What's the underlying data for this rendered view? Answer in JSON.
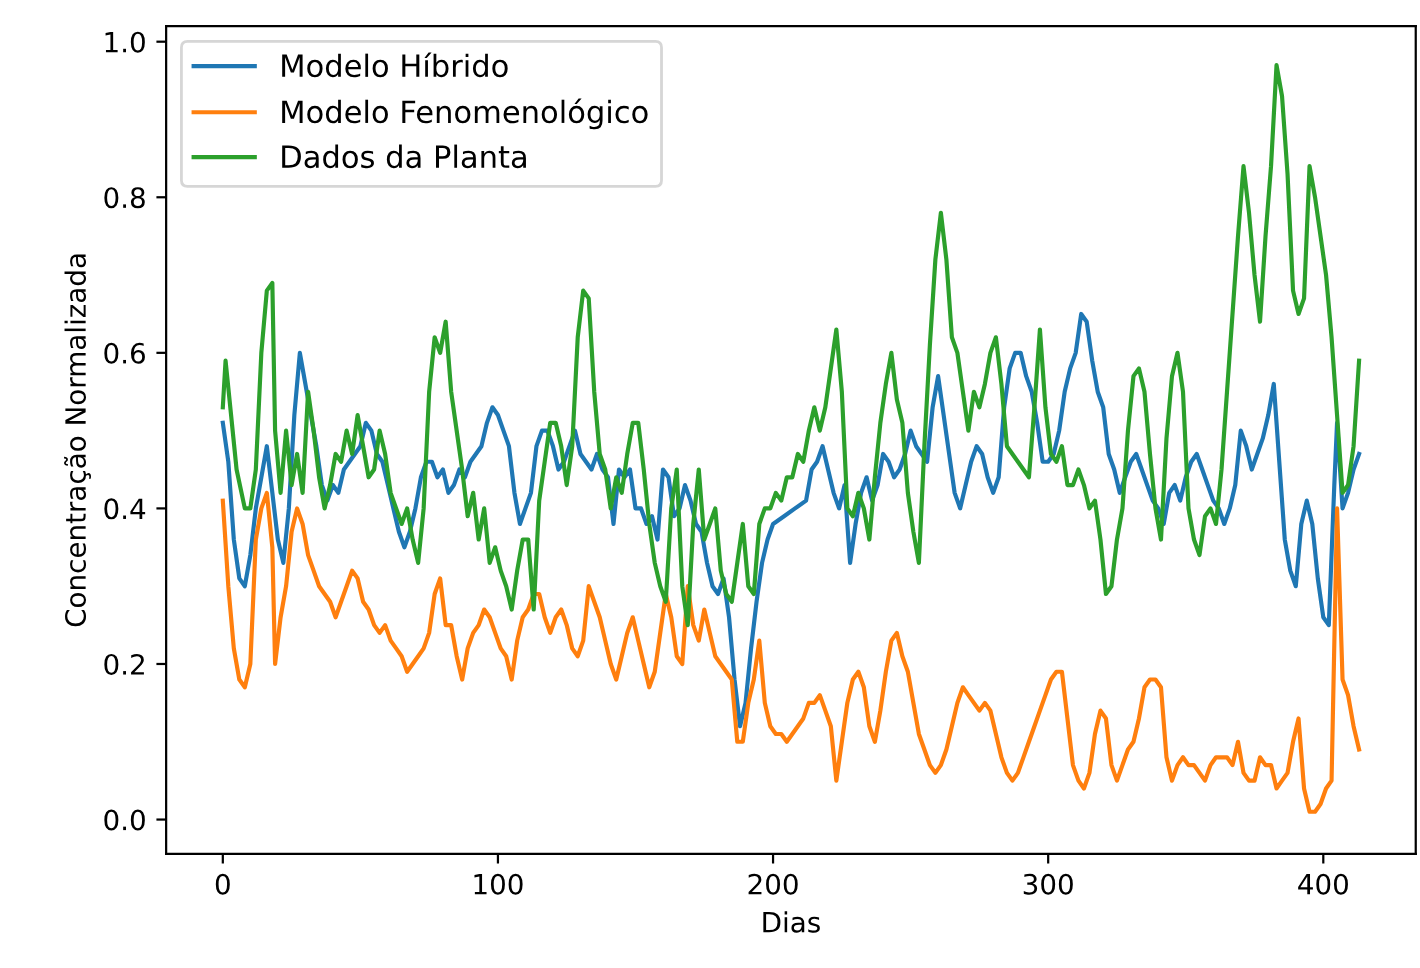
{
  "chart_data": {
    "type": "line",
    "xlabel": "Dias",
    "ylabel": "Concentração Normalizada",
    "xlim": [
      -20.6,
      433.6
    ],
    "ylim": [
      -0.044,
      1.02
    ],
    "xticks": [
      0,
      100,
      200,
      300,
      400
    ],
    "yticks": [
      {
        "value": 0,
        "label": "0.0"
      },
      {
        "value": 0.2,
        "label": "0.2"
      },
      {
        "value": 0.4,
        "label": "0.4"
      },
      {
        "value": 0.6,
        "label": "0.6"
      },
      {
        "value": 0.8,
        "label": "0.8"
      },
      {
        "value": 1,
        "label": "1.0"
      }
    ],
    "legend": "top left",
    "grid": false,
    "line_style": "solid",
    "marker": "none",
    "series": [
      {
        "name": "Modelo Híbrido",
        "color": "#1f77b4",
        "x": [
          0,
          2,
          4,
          6,
          8,
          10,
          12,
          14,
          16,
          18,
          20,
          22,
          24,
          26,
          28,
          30,
          32,
          34,
          36,
          38,
          40,
          42,
          44,
          46,
          48,
          50,
          52,
          54,
          56,
          58,
          60,
          62,
          64,
          66,
          68,
          70,
          72,
          74,
          76,
          78,
          80,
          82,
          84,
          86,
          88,
          90,
          92,
          94,
          96,
          98,
          100,
          102,
          104,
          106,
          108,
          110,
          112,
          114,
          116,
          118,
          120,
          122,
          124,
          126,
          128,
          130,
          132,
          134,
          136,
          138,
          140,
          142,
          144,
          146,
          148,
          150,
          152,
          154,
          156,
          158,
          160,
          162,
          164,
          166,
          168,
          170,
          172,
          174,
          176,
          178,
          180,
          182,
          184,
          186,
          188,
          190,
          192,
          194,
          196,
          198,
          200,
          204,
          208,
          212,
          214,
          216,
          218,
          220,
          222,
          224,
          226,
          228,
          230,
          232,
          234,
          236,
          238,
          240,
          242,
          244,
          246,
          248,
          250,
          252,
          254,
          256,
          258,
          260,
          262,
          264,
          266,
          268,
          270,
          272,
          274,
          276,
          278,
          280,
          282,
          284,
          286,
          288,
          290,
          292,
          294,
          296,
          298,
          300,
          302,
          304,
          306,
          308,
          310,
          312,
          314,
          316,
          318,
          320,
          322,
          324,
          326,
          328,
          330,
          332,
          334,
          336,
          338,
          340,
          342,
          344,
          346,
          348,
          350,
          352,
          354,
          356,
          358,
          360,
          362,
          364,
          366,
          368,
          370,
          372,
          374,
          376,
          378,
          380,
          382,
          384,
          386,
          388,
          390,
          392,
          394,
          396,
          398,
          400,
          402,
          404,
          405,
          407,
          409,
          411,
          413
        ],
        "values": [
          0.51,
          0.46,
          0.36,
          0.31,
          0.3,
          0.34,
          0.4,
          0.44,
          0.48,
          0.42,
          0.36,
          0.33,
          0.4,
          0.52,
          0.6,
          0.56,
          0.52,
          0.48,
          0.43,
          0.41,
          0.43,
          0.42,
          0.45,
          0.46,
          0.47,
          0.48,
          0.51,
          0.5,
          0.47,
          0.46,
          0.43,
          0.4,
          0.37,
          0.35,
          0.37,
          0.4,
          0.44,
          0.46,
          0.46,
          0.44,
          0.45,
          0.42,
          0.43,
          0.45,
          0.44,
          0.46,
          0.47,
          0.48,
          0.51,
          0.53,
          0.52,
          0.5,
          0.48,
          0.42,
          0.38,
          0.4,
          0.42,
          0.48,
          0.5,
          0.5,
          0.48,
          0.45,
          0.46,
          0.48,
          0.5,
          0.47,
          0.46,
          0.45,
          0.47,
          0.45,
          0.44,
          0.38,
          0.45,
          0.44,
          0.45,
          0.4,
          0.4,
          0.38,
          0.39,
          0.36,
          0.45,
          0.44,
          0.39,
          0.4,
          0.43,
          0.41,
          0.38,
          0.37,
          0.33,
          0.3,
          0.29,
          0.31,
          0.26,
          0.18,
          0.12,
          0.15,
          0.22,
          0.28,
          0.33,
          0.36,
          0.38,
          0.39,
          0.4,
          0.41,
          0.45,
          0.46,
          0.48,
          0.45,
          0.42,
          0.4,
          0.43,
          0.33,
          0.38,
          0.42,
          0.44,
          0.41,
          0.43,
          0.47,
          0.46,
          0.44,
          0.45,
          0.47,
          0.5,
          0.48,
          0.47,
          0.46,
          0.53,
          0.57,
          0.52,
          0.47,
          0.42,
          0.4,
          0.43,
          0.46,
          0.48,
          0.47,
          0.44,
          0.42,
          0.44,
          0.53,
          0.58,
          0.6,
          0.6,
          0.57,
          0.55,
          0.51,
          0.46,
          0.46,
          0.47,
          0.5,
          0.55,
          0.58,
          0.6,
          0.65,
          0.64,
          0.59,
          0.55,
          0.53,
          0.47,
          0.45,
          0.42,
          0.44,
          0.46,
          0.47,
          0.45,
          0.43,
          0.41,
          0.4,
          0.38,
          0.42,
          0.43,
          0.41,
          0.44,
          0.46,
          0.47,
          0.45,
          0.43,
          0.41,
          0.4,
          0.38,
          0.4,
          0.43,
          0.5,
          0.48,
          0.45,
          0.47,
          0.49,
          0.52,
          0.56,
          0.46,
          0.36,
          0.32,
          0.3,
          0.38,
          0.41,
          0.38,
          0.31,
          0.26,
          0.25,
          0.43,
          0.51,
          0.4,
          0.42,
          0.45,
          0.47
        ]
      },
      {
        "name": "Modelo Fenomenológico",
        "color": "#ff7f0e",
        "x": [
          0,
          2,
          4,
          6,
          8,
          10,
          12,
          14,
          16,
          18,
          19,
          21,
          23,
          25,
          27,
          29,
          31,
          33,
          35,
          37,
          39,
          41,
          43,
          45,
          47,
          49,
          51,
          53,
          55,
          57,
          59,
          61,
          63,
          65,
          67,
          69,
          71,
          73,
          75,
          77,
          79,
          81,
          83,
          85,
          87,
          89,
          91,
          93,
          95,
          97,
          99,
          101,
          103,
          105,
          107,
          109,
          111,
          113,
          115,
          117,
          119,
          121,
          123,
          125,
          127,
          129,
          131,
          133,
          135,
          137,
          139,
          141,
          143,
          145,
          147,
          149,
          151,
          153,
          155,
          157,
          159,
          161,
          163,
          165,
          167,
          169,
          171,
          173,
          175,
          177,
          179,
          181,
          183,
          185,
          187,
          189,
          191,
          193,
          195,
          197,
          199,
          201,
          203,
          205,
          207,
          209,
          211,
          213,
          215,
          217,
          219,
          221,
          223,
          225,
          227,
          229,
          231,
          233,
          235,
          237,
          239,
          241,
          243,
          245,
          247,
          249,
          251,
          253,
          255,
          257,
          259,
          261,
          263,
          265,
          267,
          269,
          271,
          273,
          275,
          277,
          279,
          281,
          283,
          285,
          287,
          289,
          291,
          293,
          295,
          297,
          299,
          301,
          303,
          305,
          307,
          309,
          311,
          313,
          315,
          317,
          319,
          321,
          323,
          325,
          327,
          329,
          331,
          333,
          335,
          337,
          339,
          341,
          343,
          345,
          347,
          349,
          351,
          353,
          355,
          357,
          359,
          361,
          363,
          365,
          367,
          369,
          371,
          373,
          375,
          377,
          379,
          381,
          383,
          385,
          387,
          389,
          391,
          393,
          395,
          397,
          399,
          401,
          403,
          405,
          407,
          409,
          411,
          413
        ],
        "values": [
          0.41,
          0.3,
          0.22,
          0.18,
          0.17,
          0.2,
          0.36,
          0.4,
          0.42,
          0.35,
          0.2,
          0.26,
          0.3,
          0.37,
          0.4,
          0.38,
          0.34,
          0.32,
          0.3,
          0.29,
          0.28,
          0.26,
          0.28,
          0.3,
          0.32,
          0.31,
          0.28,
          0.27,
          0.25,
          0.24,
          0.25,
          0.23,
          0.22,
          0.21,
          0.19,
          0.2,
          0.21,
          0.22,
          0.24,
          0.29,
          0.31,
          0.25,
          0.25,
          0.21,
          0.18,
          0.22,
          0.24,
          0.25,
          0.27,
          0.26,
          0.24,
          0.22,
          0.21,
          0.18,
          0.23,
          0.26,
          0.27,
          0.29,
          0.29,
          0.26,
          0.24,
          0.26,
          0.27,
          0.25,
          0.22,
          0.21,
          0.23,
          0.3,
          0.28,
          0.26,
          0.23,
          0.2,
          0.18,
          0.21,
          0.24,
          0.26,
          0.23,
          0.2,
          0.17,
          0.19,
          0.24,
          0.29,
          0.26,
          0.21,
          0.2,
          0.3,
          0.25,
          0.23,
          0.27,
          0.24,
          0.21,
          0.2,
          0.19,
          0.18,
          0.1,
          0.1,
          0.15,
          0.18,
          0.23,
          0.15,
          0.12,
          0.11,
          0.11,
          0.1,
          0.11,
          0.12,
          0.13,
          0.15,
          0.15,
          0.16,
          0.14,
          0.12,
          0.05,
          0.1,
          0.15,
          0.18,
          0.19,
          0.17,
          0.12,
          0.1,
          0.14,
          0.19,
          0.23,
          0.24,
          0.21,
          0.19,
          0.15,
          0.11,
          0.09,
          0.07,
          0.06,
          0.07,
          0.09,
          0.12,
          0.15,
          0.17,
          0.16,
          0.15,
          0.14,
          0.15,
          0.14,
          0.11,
          0.08,
          0.06,
          0.05,
          0.06,
          0.08,
          0.1,
          0.12,
          0.14,
          0.16,
          0.18,
          0.19,
          0.19,
          0.13,
          0.07,
          0.05,
          0.04,
          0.06,
          0.11,
          0.14,
          0.13,
          0.07,
          0.05,
          0.07,
          0.09,
          0.1,
          0.13,
          0.17,
          0.18,
          0.18,
          0.17,
          0.08,
          0.05,
          0.07,
          0.08,
          0.07,
          0.07,
          0.06,
          0.05,
          0.07,
          0.08,
          0.08,
          0.08,
          0.07,
          0.1,
          0.06,
          0.05,
          0.05,
          0.08,
          0.07,
          0.07,
          0.04,
          0.05,
          0.06,
          0.1,
          0.13,
          0.04,
          0.01,
          0.01,
          0.02,
          0.04,
          0.05,
          0.4,
          0.18,
          0.16,
          0.12,
          0.09
        ]
      },
      {
        "name": "Dados da Planta",
        "color": "#2ca02c",
        "x": [
          0,
          1,
          3,
          5,
          8,
          10,
          12,
          14,
          16,
          18,
          19,
          21,
          23,
          25,
          27,
          29,
          31,
          33,
          35,
          37,
          39,
          41,
          43,
          45,
          47,
          49,
          51,
          53,
          55,
          57,
          59,
          61,
          63,
          65,
          67,
          69,
          71,
          73,
          75,
          77,
          79,
          81,
          83,
          85,
          87,
          89,
          91,
          93,
          95,
          97,
          99,
          101,
          103,
          105,
          107,
          109,
          111,
          113,
          115,
          117,
          119,
          121,
          123,
          125,
          127,
          129,
          131,
          133,
          135,
          137,
          139,
          141,
          143,
          145,
          147,
          149,
          151,
          153,
          155,
          157,
          159,
          161,
          163,
          165,
          167,
          169,
          171,
          173,
          175,
          177,
          179,
          181,
          183,
          185,
          187,
          189,
          191,
          193,
          195,
          197,
          199,
          201,
          203,
          205,
          207,
          209,
          211,
          213,
          215,
          217,
          219,
          221,
          223,
          225,
          227,
          229,
          231,
          233,
          235,
          237,
          239,
          241,
          243,
          245,
          247,
          249,
          251,
          253,
          255,
          257,
          259,
          261,
          263,
          265,
          267,
          269,
          271,
          273,
          275,
          277,
          279,
          281,
          283,
          285,
          287,
          289,
          291,
          293,
          295,
          297,
          299,
          301,
          303,
          305,
          307,
          309,
          311,
          313,
          315,
          317,
          319,
          321,
          323,
          325,
          327,
          329,
          331,
          333,
          335,
          337,
          339,
          341,
          343,
          345,
          347,
          349,
          351,
          353,
          355,
          357,
          359,
          361,
          363,
          365,
          367,
          369,
          371,
          373,
          375,
          377,
          379,
          381,
          383,
          385,
          387,
          389,
          391,
          393,
          395,
          397,
          399,
          401,
          403,
          405,
          407,
          409,
          411,
          413
        ],
        "values": [
          0.53,
          0.59,
          0.52,
          0.45,
          0.4,
          0.4,
          0.45,
          0.6,
          0.68,
          0.69,
          0.5,
          0.42,
          0.5,
          0.43,
          0.47,
          0.42,
          0.55,
          0.5,
          0.44,
          0.4,
          0.43,
          0.47,
          0.46,
          0.5,
          0.47,
          0.52,
          0.48,
          0.44,
          0.45,
          0.5,
          0.47,
          0.42,
          0.4,
          0.38,
          0.4,
          0.36,
          0.33,
          0.4,
          0.55,
          0.62,
          0.6,
          0.64,
          0.55,
          0.5,
          0.45,
          0.39,
          0.42,
          0.36,
          0.4,
          0.33,
          0.35,
          0.32,
          0.3,
          0.27,
          0.32,
          0.36,
          0.36,
          0.27,
          0.41,
          0.46,
          0.51,
          0.51,
          0.48,
          0.43,
          0.48,
          0.62,
          0.68,
          0.67,
          0.55,
          0.47,
          0.45,
          0.4,
          0.44,
          0.42,
          0.47,
          0.51,
          0.51,
          0.45,
          0.38,
          0.33,
          0.3,
          0.28,
          0.4,
          0.45,
          0.3,
          0.25,
          0.38,
          0.45,
          0.36,
          0.38,
          0.4,
          0.32,
          0.29,
          0.28,
          0.33,
          0.38,
          0.3,
          0.29,
          0.38,
          0.4,
          0.4,
          0.42,
          0.41,
          0.44,
          0.44,
          0.47,
          0.46,
          0.5,
          0.53,
          0.5,
          0.53,
          0.58,
          0.63,
          0.55,
          0.4,
          0.39,
          0.42,
          0.4,
          0.36,
          0.44,
          0.51,
          0.56,
          0.6,
          0.54,
          0.51,
          0.42,
          0.37,
          0.33,
          0.48,
          0.61,
          0.72,
          0.78,
          0.72,
          0.62,
          0.6,
          0.55,
          0.5,
          0.55,
          0.53,
          0.56,
          0.6,
          0.62,
          0.56,
          0.48,
          0.47,
          0.46,
          0.45,
          0.44,
          0.53,
          0.63,
          0.53,
          0.47,
          0.46,
          0.48,
          0.43,
          0.43,
          0.45,
          0.43,
          0.4,
          0.41,
          0.36,
          0.29,
          0.3,
          0.36,
          0.4,
          0.5,
          0.57,
          0.58,
          0.55,
          0.47,
          0.4,
          0.36,
          0.49,
          0.57,
          0.6,
          0.55,
          0.4,
          0.36,
          0.34,
          0.39,
          0.4,
          0.38,
          0.45,
          0.55,
          0.65,
          0.75,
          0.84,
          0.78,
          0.7,
          0.64,
          0.75,
          0.84,
          0.97,
          0.93,
          0.83,
          0.68,
          0.65,
          0.67,
          0.84,
          0.8,
          0.75,
          0.7,
          0.62,
          0.52,
          0.42,
          0.43,
          0.48,
          0.59
        ]
      }
    ]
  }
}
